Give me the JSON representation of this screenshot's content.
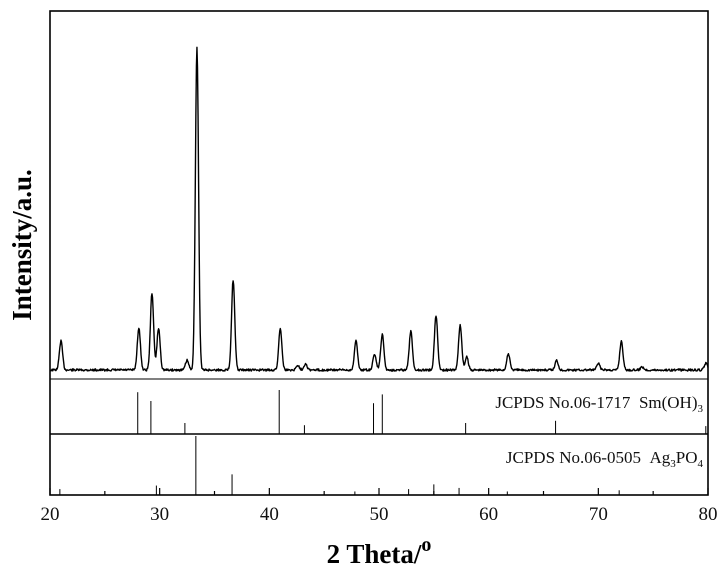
{
  "chart_data": {
    "type": "line",
    "xlabel": "2 Theta/",
    "xlabel_degree": "o",
    "ylabel": "Intensity/a.u.",
    "xlim": [
      20,
      80
    ],
    "x_ticks": [
      20,
      30,
      40,
      50,
      60,
      70,
      80
    ],
    "x_tick_labels": [
      "20",
      "30",
      "40",
      "50",
      "60",
      "70",
      "80"
    ],
    "grid": false,
    "color": "#000000",
    "series": [
      {
        "baseline": 0.08,
        "peaks": [
          {
            "x": 21.0,
            "h": 0.09
          },
          {
            "x": 28.1,
            "h": 0.13
          },
          {
            "x": 29.3,
            "h": 0.24
          },
          {
            "x": 29.9,
            "h": 0.13
          },
          {
            "x": 32.5,
            "h": 0.03
          },
          {
            "x": 33.4,
            "h": 1.0
          },
          {
            "x": 36.7,
            "h": 0.28
          },
          {
            "x": 41.0,
            "h": 0.13
          },
          {
            "x": 42.6,
            "h": 0.015
          },
          {
            "x": 43.3,
            "h": 0.02
          },
          {
            "x": 47.9,
            "h": 0.09
          },
          {
            "x": 49.6,
            "h": 0.05
          },
          {
            "x": 50.3,
            "h": 0.11
          },
          {
            "x": 52.9,
            "h": 0.12
          },
          {
            "x": 55.2,
            "h": 0.17
          },
          {
            "x": 57.4,
            "h": 0.14
          },
          {
            "x": 58.0,
            "h": 0.04
          },
          {
            "x": 61.8,
            "h": 0.05
          },
          {
            "x": 66.2,
            "h": 0.03
          },
          {
            "x": 70.0,
            "h": 0.02
          },
          {
            "x": 72.1,
            "h": 0.09
          },
          {
            "x": 74.0,
            "h": 0.01
          },
          {
            "x": 79.8,
            "h": 0.02
          }
        ]
      }
    ],
    "reference_patterns": [
      {
        "label": "JCPDS No.06-1717",
        "formula_parts": [
          {
            "text": "Sm(OH)",
            "sub": false
          },
          {
            "text": "3",
            "sub": true
          }
        ],
        "lines": [
          {
            "x": 28.0,
            "h": 0.95
          },
          {
            "x": 29.2,
            "h": 0.75
          },
          {
            "x": 32.3,
            "h": 0.25
          },
          {
            "x": 40.9,
            "h": 1.0
          },
          {
            "x": 43.2,
            "h": 0.2
          },
          {
            "x": 49.5,
            "h": 0.7
          },
          {
            "x": 50.3,
            "h": 0.9
          },
          {
            "x": 57.9,
            "h": 0.25
          },
          {
            "x": 66.1,
            "h": 0.3
          },
          {
            "x": 79.8,
            "h": 0.18
          }
        ]
      },
      {
        "label": "JCPDS No.06-0505",
        "formula_parts": [
          {
            "text": "Ag",
            "sub": false
          },
          {
            "text": "3",
            "sub": true
          },
          {
            "text": "PO",
            "sub": false
          },
          {
            "text": "4",
            "sub": true
          }
        ],
        "lines": [
          {
            "x": 20.9,
            "h": 0.1
          },
          {
            "x": 29.7,
            "h": 0.16
          },
          {
            "x": 33.3,
            "h": 1.0
          },
          {
            "x": 36.6,
            "h": 0.35
          },
          {
            "x": 47.8,
            "h": 0.06
          },
          {
            "x": 52.7,
            "h": 0.1
          },
          {
            "x": 55.0,
            "h": 0.18
          },
          {
            "x": 57.3,
            "h": 0.12
          },
          {
            "x": 61.7,
            "h": 0.06
          },
          {
            "x": 71.9,
            "h": 0.08
          }
        ]
      }
    ]
  }
}
